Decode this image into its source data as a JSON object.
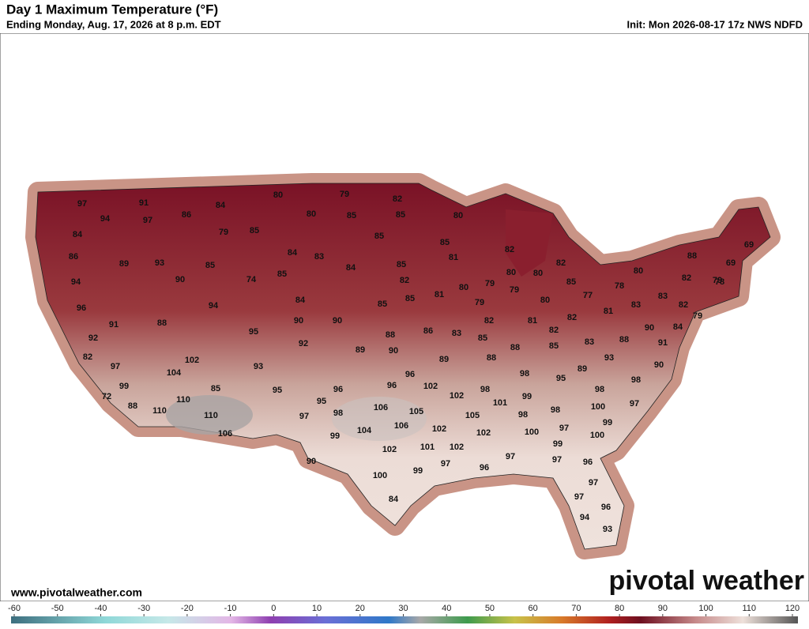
{
  "header": {
    "title": "Day 1 Maximum Temperature (°F)",
    "subtitle": "Ending Monday, Aug. 17, 2026 at 8 p.m. EDT",
    "init": "Init: Mon 2026-08-17 17z NWS NDFD"
  },
  "map": {
    "temps": [
      97,
      91,
      86,
      84,
      94,
      97,
      84,
      79,
      85,
      80,
      79,
      82,
      80,
      85,
      85,
      80,
      85,
      85,
      86,
      89,
      93,
      85,
      84,
      83,
      81,
      82,
      84,
      85,
      82,
      90,
      74,
      85,
      82,
      80,
      80,
      79,
      80,
      94,
      84,
      80,
      81,
      79,
      85,
      78,
      77,
      82,
      79,
      85,
      85,
      79,
      80,
      83,
      83,
      82,
      79,
      96,
      94,
      81,
      82,
      81,
      82,
      91,
      88,
      95,
      90,
      90,
      86,
      83,
      85,
      82,
      85,
      83,
      88,
      90,
      84,
      92,
      92,
      88,
      89,
      90,
      88,
      88,
      89,
      93,
      91,
      82,
      97,
      102,
      93,
      90,
      104,
      89,
      96,
      98,
      98,
      95,
      98,
      99,
      85,
      95,
      96,
      96,
      102,
      102,
      98,
      99,
      72,
      110,
      95,
      97,
      88,
      110,
      106,
      105,
      101,
      98,
      98,
      100,
      98,
      97,
      105,
      110,
      99,
      106,
      102,
      102,
      100,
      97,
      100,
      104,
      106,
      99,
      101,
      102,
      99,
      102,
      97,
      97,
      96,
      97,
      90,
      96,
      99,
      100,
      97,
      84,
      97,
      96,
      94,
      93,
      88,
      69,
      69,
      78
    ]
  },
  "footer": {
    "website": "www.pivotalweather.com",
    "logo": "pivotal weather"
  },
  "colorbar": {
    "ticks": [
      -60,
      -50,
      -40,
      -30,
      -20,
      -10,
      0,
      10,
      20,
      30,
      40,
      50,
      60,
      70,
      80,
      90,
      100,
      110,
      120
    ]
  }
}
